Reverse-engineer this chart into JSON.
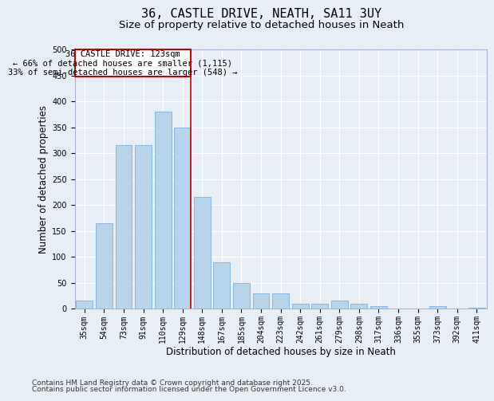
{
  "title_line1": "36, CASTLE DRIVE, NEATH, SA11 3UY",
  "title_line2": "Size of property relative to detached houses in Neath",
  "xlabel": "Distribution of detached houses by size in Neath",
  "ylabel": "Number of detached properties",
  "bar_labels": [
    "35sqm",
    "54sqm",
    "73sqm",
    "91sqm",
    "110sqm",
    "129sqm",
    "148sqm",
    "167sqm",
    "185sqm",
    "204sqm",
    "223sqm",
    "242sqm",
    "261sqm",
    "279sqm",
    "298sqm",
    "317sqm",
    "336sqm",
    "355sqm",
    "373sqm",
    "392sqm",
    "411sqm"
  ],
  "bar_values": [
    15,
    165,
    315,
    315,
    380,
    350,
    215,
    90,
    50,
    30,
    30,
    10,
    10,
    15,
    10,
    5,
    0,
    0,
    5,
    0,
    2
  ],
  "bar_color": "#b8d4eb",
  "bar_edge_color": "#7aafe0",
  "bar_width": 0.85,
  "vline_x_bar_index": 5,
  "vline_color": "#cc0000",
  "annot_line1": "36 CASTLE DRIVE: 123sqm",
  "annot_line2": "← 66% of detached houses are smaller (1,115)",
  "annot_line3": "33% of semi-detached houses are larger (548) →",
  "annotation_box_color": "#cc0000",
  "annotation_box_bg": "#ffffff",
  "ylim": [
    0,
    500
  ],
  "yticks": [
    0,
    50,
    100,
    150,
    200,
    250,
    300,
    350,
    400,
    450,
    500
  ],
  "bg_color": "#e8eef5",
  "grid_color": "#ffffff",
  "footer_line1": "Contains HM Land Registry data © Crown copyright and database right 2025.",
  "footer_line2": "Contains public sector information licensed under the Open Government Licence v3.0.",
  "title_fontsize": 11,
  "subtitle_fontsize": 9.5,
  "annotation_fontsize": 7.5,
  "xlabel_fontsize": 8.5,
  "ylabel_fontsize": 8.5,
  "tick_fontsize": 7,
  "footer_fontsize": 6.5
}
